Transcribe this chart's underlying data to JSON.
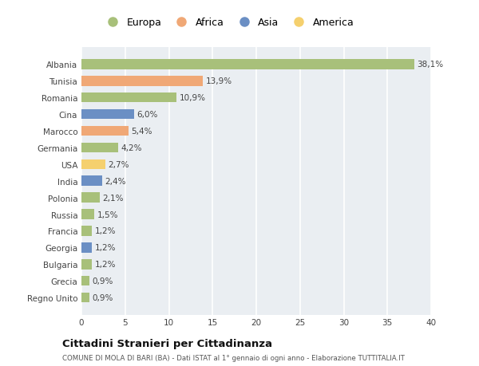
{
  "categories": [
    "Albania",
    "Tunisia",
    "Romania",
    "Cina",
    "Marocco",
    "Germania",
    "USA",
    "India",
    "Polonia",
    "Russia",
    "Francia",
    "Georgia",
    "Bulgaria",
    "Grecia",
    "Regno Unito"
  ],
  "values": [
    38.1,
    13.9,
    10.9,
    6.0,
    5.4,
    4.2,
    2.7,
    2.4,
    2.1,
    1.5,
    1.2,
    1.2,
    1.2,
    0.9,
    0.9
  ],
  "labels": [
    "38,1%",
    "13,9%",
    "10,9%",
    "6,0%",
    "5,4%",
    "4,2%",
    "2,7%",
    "2,4%",
    "2,1%",
    "1,5%",
    "1,2%",
    "1,2%",
    "1,2%",
    "0,9%",
    "0,9%"
  ],
  "colors": [
    "#a8c07a",
    "#f0a876",
    "#a8c07a",
    "#6b8fc4",
    "#f0a876",
    "#a8c07a",
    "#f5d06e",
    "#6b8fc4",
    "#a8c07a",
    "#a8c07a",
    "#a8c07a",
    "#6b8fc4",
    "#a8c07a",
    "#a8c07a",
    "#a8c07a"
  ],
  "legend": {
    "Europa": "#a8c07a",
    "Africa": "#f0a876",
    "Asia": "#6b8fc4",
    "America": "#f5d06e"
  },
  "xlim": [
    0,
    40
  ],
  "xticks": [
    0,
    5,
    10,
    15,
    20,
    25,
    30,
    35,
    40
  ],
  "title": "Cittadini Stranieri per Cittadinanza",
  "subtitle": "COMUNE DI MOLA DI BARI (BA) - Dati ISTAT al 1° gennaio di ogni anno - Elaborazione TUTTITALIA.IT",
  "background_color": "#ffffff",
  "plot_bg_color": "#eaeef2",
  "grid_color": "#ffffff",
  "bar_height": 0.6,
  "label_fontsize": 7.5,
  "tick_fontsize": 7.5
}
